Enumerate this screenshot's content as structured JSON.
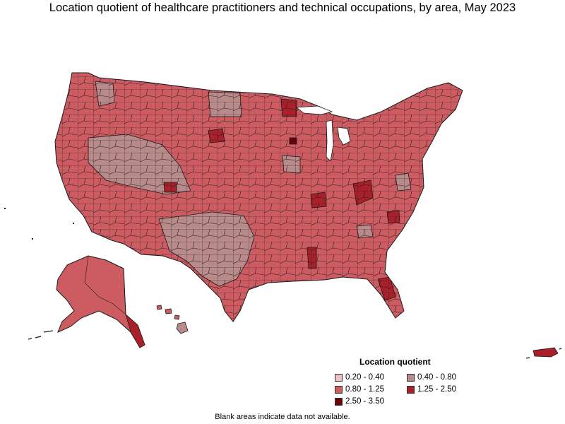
{
  "title": "Location quotient of healthcare practitioners and technical occupations, by area, May 2023",
  "legend": {
    "title": "Location quotient",
    "items": [
      {
        "label": "0.20 - 0.40",
        "color": "#f0c0c4"
      },
      {
        "label": "0.40 - 0.80",
        "color": "#b88a8a"
      },
      {
        "label": "0.80 - 1.25",
        "color": "#cd5c62"
      },
      {
        "label": "1.25 - 2.50",
        "color": "#a8202a"
      },
      {
        "label": "2.50 - 3.50",
        "color": "#6a0008"
      }
    ]
  },
  "footnote": "Blank areas indicate data not available.",
  "colors": {
    "border": "#1a1a1a",
    "background": "#ffffff"
  }
}
